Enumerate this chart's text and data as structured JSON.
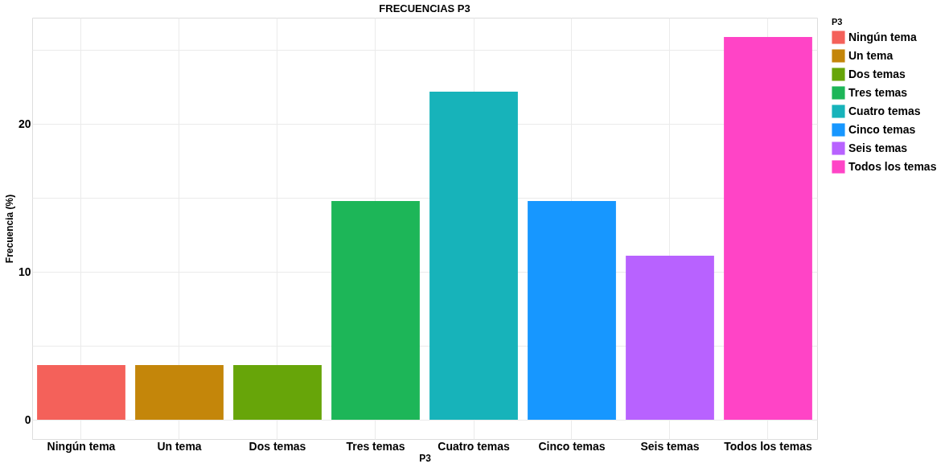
{
  "chart_data": {
    "type": "bar",
    "title": "FRECUENCIAS P3",
    "xlabel": "P3",
    "ylabel": "Frecuencia (%)",
    "legend_title": "P3",
    "categories": [
      "Ningún tema",
      "Un tema",
      "Dos temas",
      "Tres temas",
      "Cuatro temas",
      "Cinco temas",
      "Seis temas",
      "Todos los temas"
    ],
    "series": [
      {
        "name": "Ningún tema",
        "color": "#f4615a",
        "values": [
          3.7,
          null,
          null,
          null,
          null,
          null,
          null,
          null
        ]
      },
      {
        "name": "Un tema",
        "color": "#c4860a",
        "values": [
          null,
          3.7,
          null,
          null,
          null,
          null,
          null,
          null
        ]
      },
      {
        "name": "Dos temas",
        "color": "#67a509",
        "values": [
          null,
          null,
          3.7,
          null,
          null,
          null,
          null,
          null
        ]
      },
      {
        "name": "Tres temas",
        "color": "#1db658",
        "values": [
          null,
          null,
          null,
          14.8,
          null,
          null,
          null,
          null
        ]
      },
      {
        "name": "Cuatro temas",
        "color": "#17b3ba",
        "values": [
          null,
          null,
          null,
          null,
          22.2,
          null,
          null,
          null
        ]
      },
      {
        "name": "Cinco temas",
        "color": "#1797ff",
        "values": [
          null,
          null,
          null,
          null,
          null,
          14.8,
          null,
          null
        ]
      },
      {
        "name": "Seis temas",
        "color": "#b862ff",
        "values": [
          null,
          null,
          null,
          null,
          null,
          null,
          11.1,
          null
        ]
      },
      {
        "name": "Todos los temas",
        "color": "#ff44c6",
        "values": [
          null,
          null,
          null,
          null,
          null,
          null,
          null,
          25.9
        ]
      }
    ],
    "ylim": [
      -1.3,
      27.2
    ],
    "yticks": [
      0,
      {
        "value": 5,
        "label": null
      },
      10,
      {
        "value": 15,
        "label": null
      },
      20,
      {
        "value": 25,
        "label": null
      }
    ],
    "grid": true,
    "legend": "right"
  }
}
